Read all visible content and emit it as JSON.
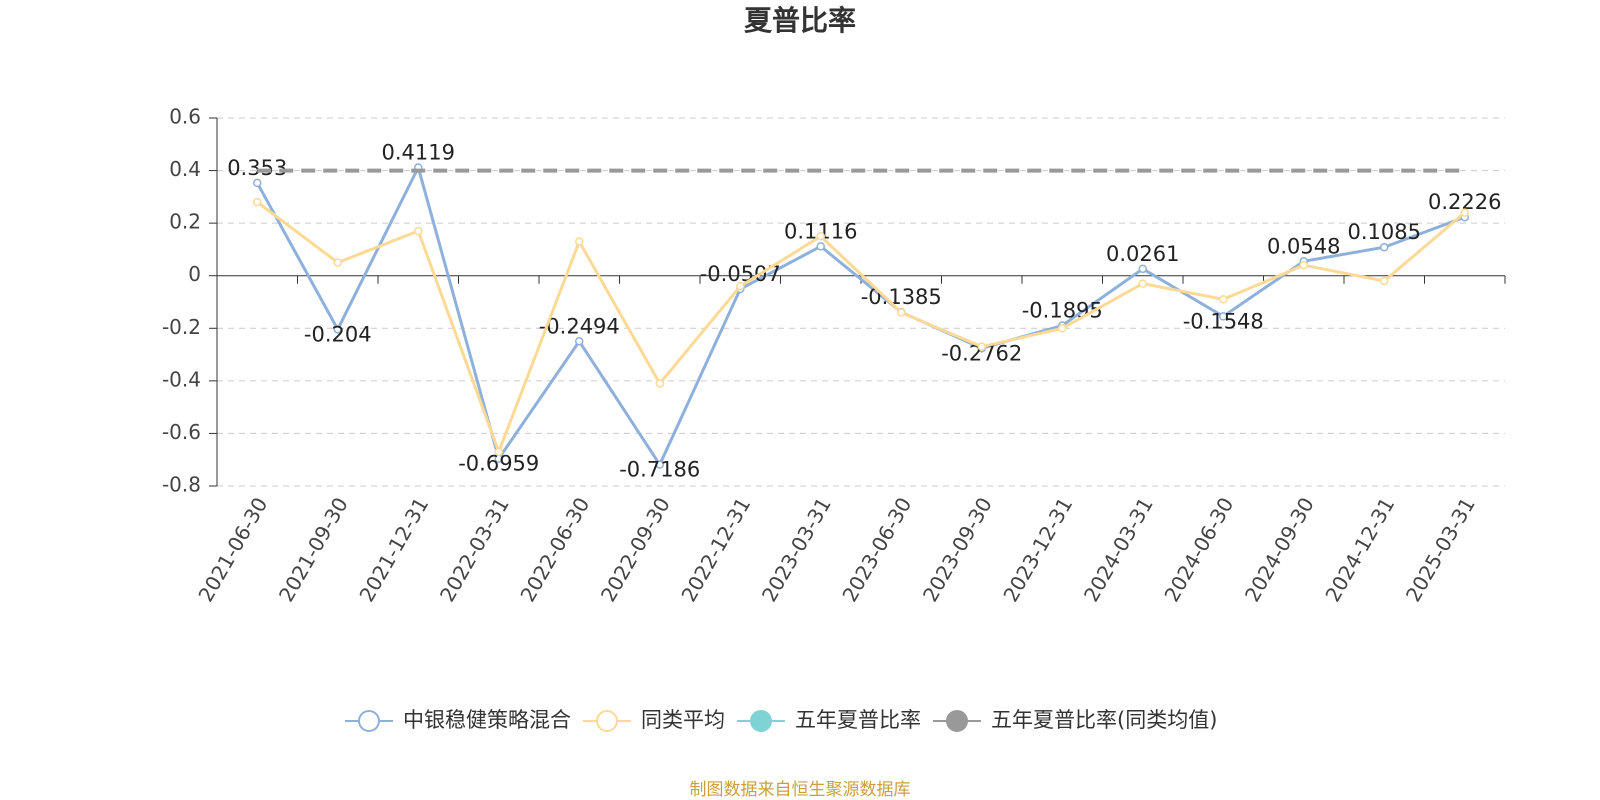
{
  "chart_data": {
    "type": "line",
    "title": "夏普比率",
    "categories": [
      "2021-06-30",
      "2021-09-30",
      "2021-12-31",
      "2022-03-31",
      "2022-06-30",
      "2022-09-30",
      "2022-12-31",
      "2023-03-31",
      "2023-06-30",
      "2023-09-30",
      "2023-12-31",
      "2024-03-31",
      "2024-06-30",
      "2024-09-30",
      "2024-12-31",
      "2025-03-31"
    ],
    "series": [
      {
        "name": "中银稳健策略混合",
        "color": "#8eb0dc",
        "labels": true,
        "values": [
          0.353,
          -0.204,
          0.4119,
          -0.6959,
          -0.2494,
          -0.7186,
          -0.0507,
          0.1116,
          -0.1385,
          -0.2762,
          -0.1895,
          0.0261,
          -0.1548,
          0.0548,
          0.1085,
          0.2226
        ]
      },
      {
        "name": "同类平均",
        "color": "#fcd995",
        "values": [
          0.28,
          0.05,
          0.17,
          -0.67,
          0.13,
          -0.41,
          -0.04,
          0.15,
          -0.14,
          -0.27,
          -0.2,
          -0.03,
          -0.09,
          0.04,
          -0.02,
          0.24
        ]
      },
      {
        "name": "五年夏普比率",
        "color": "#7fd3d5",
        "filled": true,
        "values": [
          null,
          null,
          null,
          null,
          null,
          null,
          null,
          null,
          null,
          null,
          null,
          null,
          null,
          null,
          null,
          null
        ]
      },
      {
        "name": "五年夏普比率(同类均值)",
        "color": "#999999",
        "filled": true,
        "dashed": true,
        "values": [
          0.4,
          0.4,
          0.4,
          0.4,
          0.4,
          0.4,
          0.4,
          0.4,
          0.4,
          0.4,
          0.4,
          0.4,
          0.4,
          0.4,
          0.4,
          0.4
        ]
      }
    ],
    "ylim": [
      -0.8,
      0.6
    ],
    "yticks": [
      -0.8,
      -0.6,
      -0.4,
      -0.2,
      0,
      0.2,
      0.4,
      0.6
    ],
    "grid": true,
    "legend": "bottom",
    "source": "制图数据来自恒生聚源数据库"
  }
}
